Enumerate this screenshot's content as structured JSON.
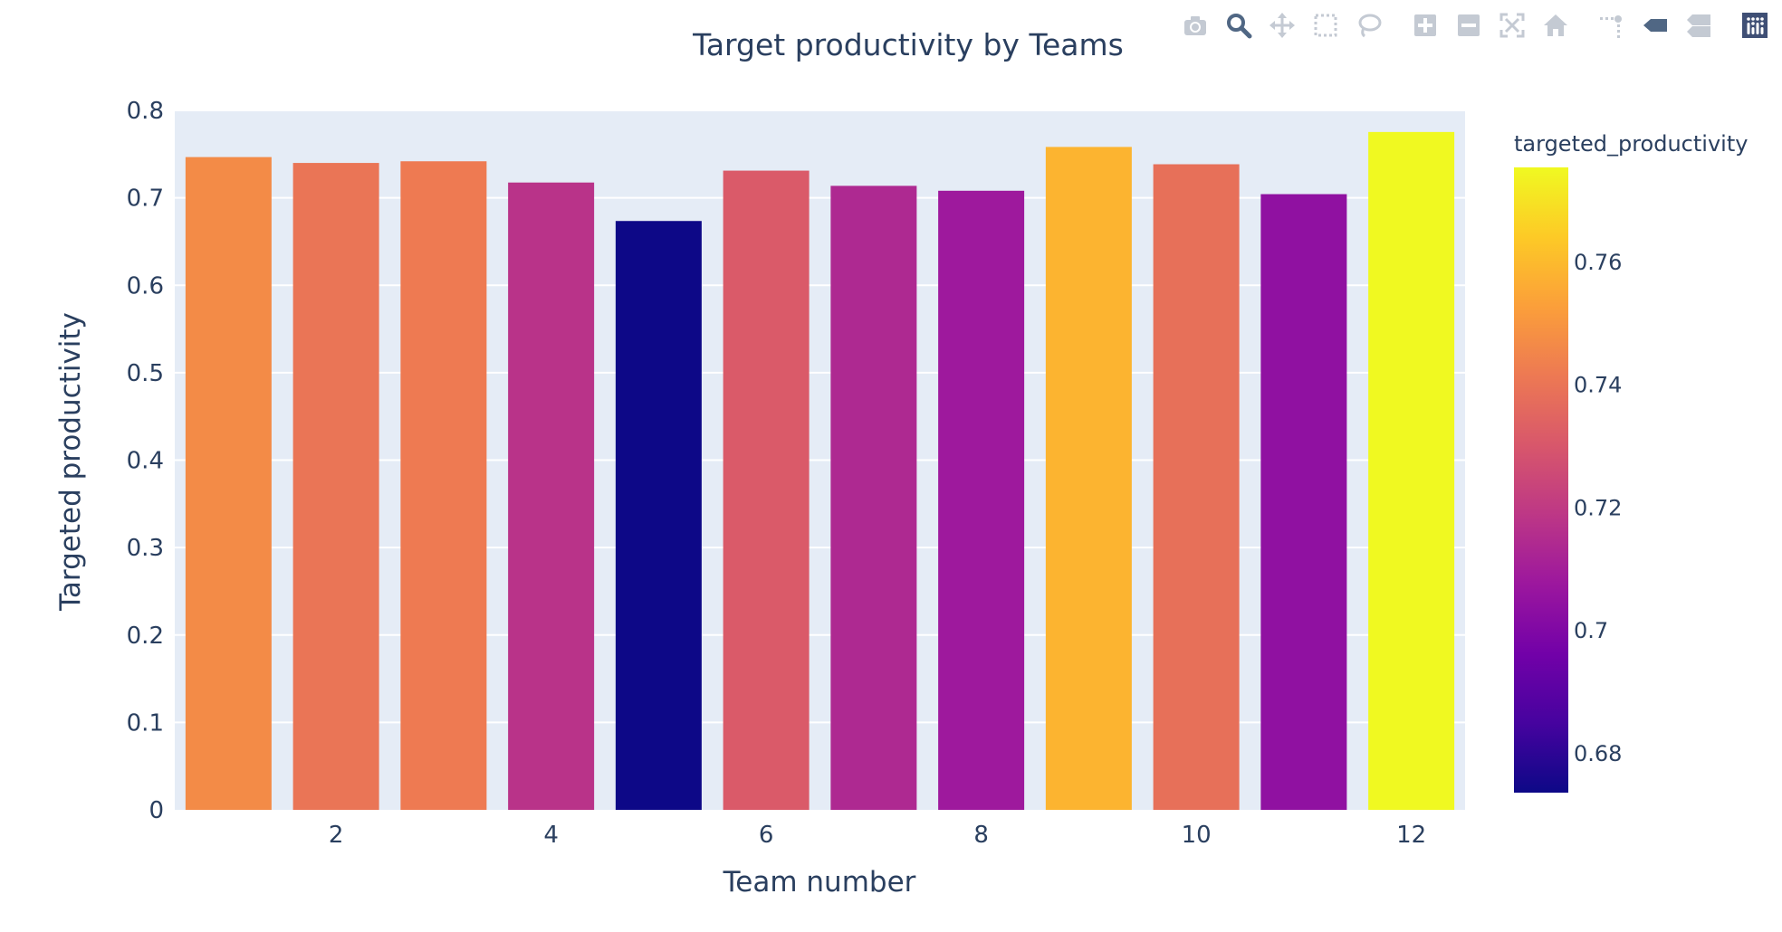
{
  "modebar": {
    "buttons": [
      {
        "name": "camera-icon"
      },
      {
        "name": "zoom-icon"
      },
      {
        "name": "pan-icon"
      },
      {
        "name": "box-select-icon"
      },
      {
        "name": "lasso-select-icon"
      },
      {
        "name": "zoom-in-icon"
      },
      {
        "name": "zoom-out-icon"
      },
      {
        "name": "autoscale-icon"
      },
      {
        "name": "reset-axes-icon"
      },
      {
        "name": "spike-lines-icon"
      },
      {
        "name": "hover-closest-icon"
      },
      {
        "name": "hover-compare-icon"
      },
      {
        "name": "plotly-logo-icon"
      }
    ],
    "icon_color": "#c4cad3",
    "active_color": "#506784"
  },
  "chart_data": {
    "type": "bar",
    "title": "Target productivity by Teams",
    "xlabel": "Team number",
    "ylabel": "Targeted productivity",
    "categories": [
      1,
      2,
      3,
      4,
      5,
      6,
      7,
      8,
      9,
      10,
      11,
      12
    ],
    "values": [
      0.7466,
      0.7399,
      0.7418,
      0.7175,
      0.6735,
      0.7311,
      0.7137,
      0.7081,
      0.7582,
      0.7384,
      0.7042,
      0.7753
    ],
    "x_tick_labels": [
      "2",
      "4",
      "6",
      "8",
      "10",
      "12"
    ],
    "x_tick_values": [
      2,
      4,
      6,
      8,
      10,
      12
    ],
    "y_tick_labels": [
      "0",
      "0.1",
      "0.2",
      "0.3",
      "0.4",
      "0.5",
      "0.6",
      "0.7",
      "0.8"
    ],
    "ylim": [
      0,
      0.8
    ],
    "xlim": [
      0.5,
      12.5
    ],
    "grid": true,
    "plot_background": "#e5ecf6",
    "colorbar": {
      "title": "targeted_productivity",
      "tick_labels": [
        "0.68",
        "0.7",
        "0.72",
        "0.74",
        "0.76"
      ],
      "tick_values": [
        0.68,
        0.7,
        0.72,
        0.74,
        0.76
      ],
      "range": [
        0.6735,
        0.7753
      ],
      "colorscale": [
        "#0d0887",
        "#46039f",
        "#7201a8",
        "#9c179e",
        "#bd3786",
        "#d8576b",
        "#ed7953",
        "#fb9f3a",
        "#fdca26",
        "#f0f921"
      ]
    }
  }
}
